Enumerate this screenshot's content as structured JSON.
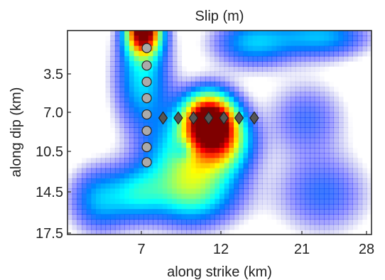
{
  "chart_data": {
    "type": "heatmap",
    "title": "Slip (m)",
    "xlabel": "along strike (km)",
    "ylabel": "along dip (km)",
    "xlim": [
      0,
      28
    ],
    "ylim": [
      0,
      17.5
    ],
    "y_direction": "down",
    "x_ticks": [
      "7",
      "12",
      "21",
      "28"
    ],
    "y_ticks": [
      "3.5",
      "7.0",
      "10.5",
      "14.5",
      "17.5"
    ],
    "colormap": "jet",
    "grid": false,
    "slip_patches": [
      {
        "x": 7.0,
        "y": 0.0,
        "amplitude": 1.0,
        "sx": 1.1,
        "sy": 1.4
      },
      {
        "x": 6.9,
        "y": 4.0,
        "amplitude": 0.35,
        "sx": 1.8,
        "sy": 3.2
      },
      {
        "x": 13.0,
        "y": 7.5,
        "amplitude": 0.95,
        "sx": 1.7,
        "sy": 1.6
      },
      {
        "x": 14.2,
        "y": 9.6,
        "amplitude": 0.55,
        "sx": 1.9,
        "sy": 1.8
      },
      {
        "x": 10.8,
        "y": 10.8,
        "amplitude": 0.35,
        "sx": 2.6,
        "sy": 2.4
      },
      {
        "x": 11.5,
        "y": 14.0,
        "amplitude": 0.38,
        "sx": 3.0,
        "sy": 2.0
      },
      {
        "x": 3.0,
        "y": 14.5,
        "amplitude": 0.3,
        "sx": 2.0,
        "sy": 2.0
      },
      {
        "x": 6.5,
        "y": 14.0,
        "amplitude": 0.22,
        "sx": 1.6,
        "sy": 1.6
      },
      {
        "x": 17.0,
        "y": 1.0,
        "amplitude": 0.3,
        "sx": 2.6,
        "sy": 1.5
      },
      {
        "x": 23.5,
        "y": 0.5,
        "amplitude": 0.3,
        "sx": 3.0,
        "sy": 1.3
      },
      {
        "x": 22.0,
        "y": 7.5,
        "amplitude": 0.18,
        "sx": 2.5,
        "sy": 2.2
      },
      {
        "x": 23.5,
        "y": 14.0,
        "amplitude": 0.2,
        "sx": 3.0,
        "sy": 2.4
      },
      {
        "x": 10.7,
        "y": 10.3,
        "amplitude": -0.15,
        "sx": 0.6,
        "sy": 0.6
      }
    ],
    "series": [
      {
        "marker": "circle",
        "color": "#aaaaaa",
        "x": [
          7.3,
          7.3,
          7.3,
          7.3,
          7.3,
          7.3,
          7.3,
          7.3
        ],
        "y": [
          1.5,
          3.0,
          4.4,
          5.8,
          7.2,
          8.6,
          10.0,
          11.3
        ]
      },
      {
        "marker": "diamond",
        "color": "#555555",
        "x": [
          8.8,
          10.2,
          11.6,
          13.0,
          14.4,
          15.8,
          17.2
        ],
        "y": [
          7.5,
          7.5,
          7.5,
          7.5,
          7.5,
          7.5,
          7.5
        ]
      }
    ]
  }
}
